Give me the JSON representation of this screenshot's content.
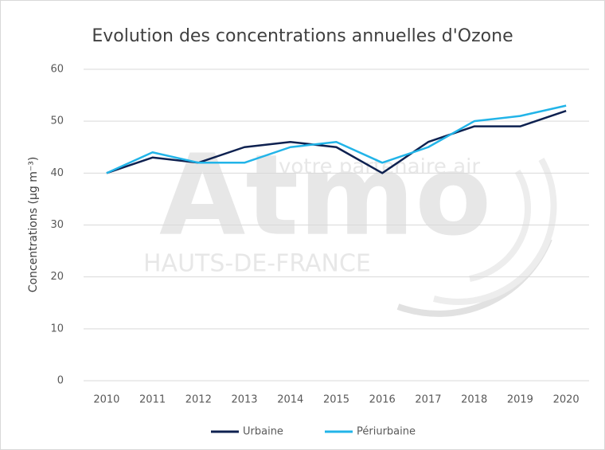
{
  "chart_data": {
    "type": "line",
    "title": "Evolution des concentrations annuelles d'Ozone",
    "y_label": "Concentrations (µg m⁻³)",
    "categories": [
      "2010",
      "2011",
      "2012",
      "2013",
      "2014",
      "2015",
      "2016",
      "2017",
      "2018",
      "2019",
      "2020"
    ],
    "series": [
      {
        "name": "Urbaine",
        "color": "#0e2150",
        "values": [
          40,
          43,
          42,
          45,
          46,
          45,
          40,
          46,
          49,
          49,
          52
        ]
      },
      {
        "name": "Périurbaine",
        "color": "#22b4e8",
        "values": [
          40,
          44,
          42,
          42,
          45,
          46,
          42,
          45,
          50,
          51,
          53
        ]
      }
    ],
    "ylim": [
      0,
      60
    ],
    "yticks": [
      0,
      10,
      20,
      30,
      40,
      50,
      60
    ],
    "grid": true,
    "legend": "bottom"
  },
  "watermark": {
    "brand": "Atmo",
    "region": "HAUTS-DE-FRANCE",
    "tagline": "votre partenaire air"
  }
}
